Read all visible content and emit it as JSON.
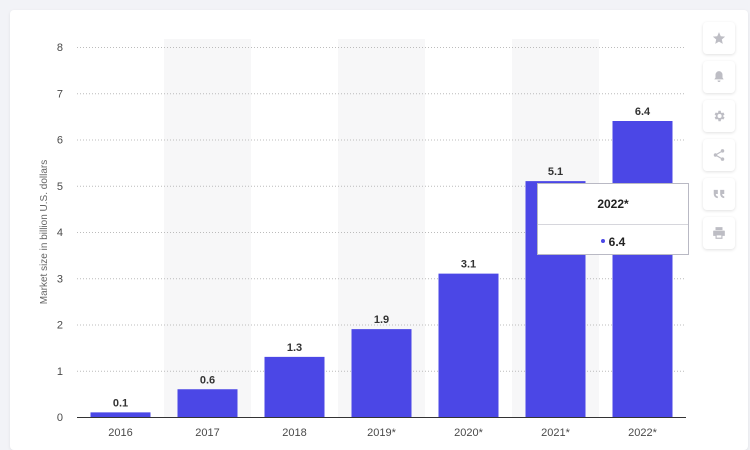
{
  "chart_data": {
    "type": "bar",
    "categories": [
      "2016",
      "2017",
      "2018",
      "2019*",
      "2020*",
      "2021*",
      "2022*"
    ],
    "values": [
      0.1,
      0.6,
      1.3,
      1.9,
      3.1,
      5.1,
      6.4
    ],
    "value_labels": [
      "0.1",
      "0.6",
      "1.3",
      "1.9",
      "3.1",
      "5.1",
      "6.4"
    ],
    "ylabel": "Market size in billion U.S. dollars",
    "ylim": [
      0,
      8
    ],
    "yticks": [
      "0",
      "1",
      "2",
      "3",
      "4",
      "5",
      "6",
      "7",
      "8"
    ],
    "grid": true,
    "bar_color": "#4b47e6"
  },
  "tooltip": {
    "title": "2022*",
    "value": "6.4"
  },
  "toolbar": {
    "icons": [
      "star-icon",
      "bell-icon",
      "gear-icon",
      "share-icon",
      "quote-icon",
      "print-icon"
    ]
  }
}
